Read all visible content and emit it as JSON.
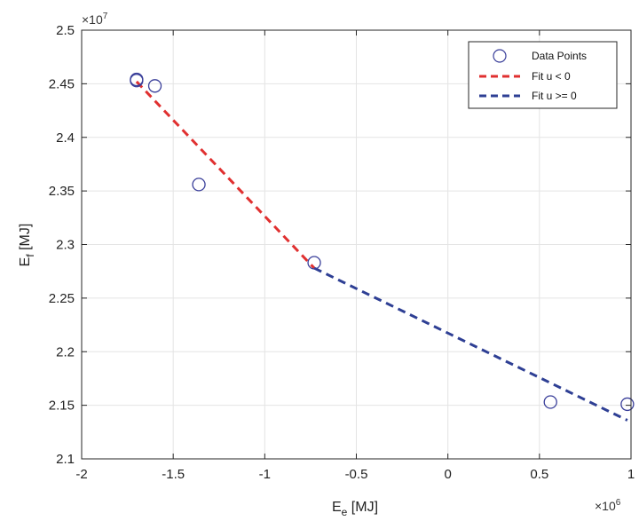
{
  "chart_data": {
    "type": "scatter",
    "xlabel_main": "E",
    "xlabel_sub": "e",
    "xlabel_unit": " [MJ]",
    "ylabel_main": "E",
    "ylabel_sub": "f",
    "ylabel_unit": " [MJ]",
    "x_multiplier_base": "×10",
    "x_multiplier_exp": "6",
    "y_multiplier_base": "×10",
    "y_multiplier_exp": "7",
    "xlim": [
      -2,
      1
    ],
    "ylim": [
      2.1,
      2.5
    ],
    "xticks": [
      -2,
      -1.5,
      -1,
      -0.5,
      0,
      0.5,
      1
    ],
    "xtick_labels": [
      "-2",
      "-1.5",
      "-1",
      "-0.5",
      "0",
      "0.5",
      "1"
    ],
    "yticks": [
      2.1,
      2.15,
      2.2,
      2.25,
      2.3,
      2.35,
      2.4,
      2.45,
      2.5
    ],
    "ytick_labels": [
      "2.1",
      "2.15",
      "2.2",
      "2.25",
      "2.3",
      "2.35",
      "2.4",
      "2.45",
      "2.5"
    ],
    "grid": true,
    "legend_position": "top-right",
    "series": [
      {
        "name": "Data Points",
        "kind": "markers",
        "marker": "circle",
        "color": "#3a3f9a",
        "x": [
          -1.7,
          -1.7,
          -1.6,
          -1.36,
          -0.73,
          0.56,
          0.98
        ],
        "y": [
          2.454,
          2.453,
          2.448,
          2.356,
          2.283,
          2.153,
          2.151
        ]
      },
      {
        "name": "Fit u < 0",
        "kind": "line",
        "style": "dashed",
        "color": "#e03030",
        "x": [
          -1.7,
          -0.73
        ],
        "y": [
          2.452,
          2.278
        ]
      },
      {
        "name": "Fit u >= 0",
        "kind": "line",
        "style": "dashed",
        "color": "#2e3f94",
        "x": [
          -0.73,
          0.98
        ],
        "y": [
          2.278,
          2.136
        ]
      }
    ]
  }
}
